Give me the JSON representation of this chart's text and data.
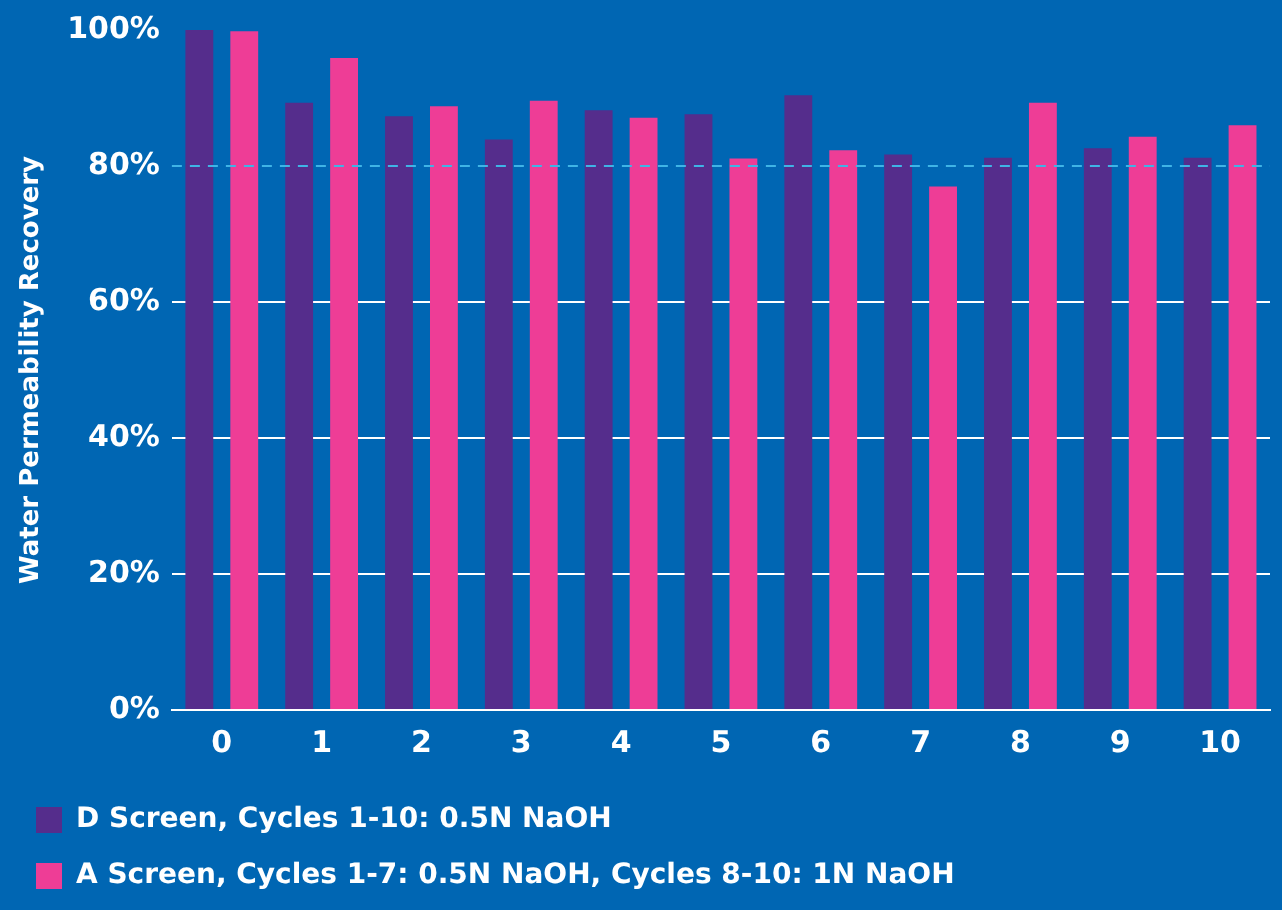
{
  "chart_data": {
    "type": "bar",
    "ylabel": "Water Permeability Recovery",
    "categories": [
      "0",
      "1",
      "2",
      "3",
      "4",
      "5",
      "6",
      "7",
      "8",
      "9",
      "10"
    ],
    "series": [
      {
        "name": "D Screen, Cycles 1-10: 0.5N NaOH",
        "color": "#552d8c",
        "values": [
          100,
          89.3,
          87.3,
          83.9,
          88.2,
          87.6,
          90.4,
          81.7,
          81.2,
          82.6,
          81.2
        ]
      },
      {
        "name": "A Screen, Cycles 1-7: 0.5N NaOH, Cycles 8-10: 1N NaOH",
        "color": "#ee3d96",
        "values": [
          99.8,
          95.9,
          88.8,
          89.6,
          87.1,
          81.1,
          82.3,
          77,
          89.3,
          84.3,
          86
        ]
      }
    ],
    "ylim": [
      0,
      100
    ],
    "yticks": [
      {
        "value": 0,
        "label": "0%"
      },
      {
        "value": 20,
        "label": "20%"
      },
      {
        "value": 40,
        "label": "40%"
      },
      {
        "value": 60,
        "label": "60%"
      },
      {
        "value": 80,
        "label": "80%"
      },
      {
        "value": 100,
        "label": "100%"
      }
    ],
    "grid": "y",
    "legend": "bottom",
    "ref_lines": [
      {
        "axis": "y",
        "value": 80,
        "label": null,
        "color": "#3fb4e6",
        "line_style": "dashed"
      }
    ]
  }
}
